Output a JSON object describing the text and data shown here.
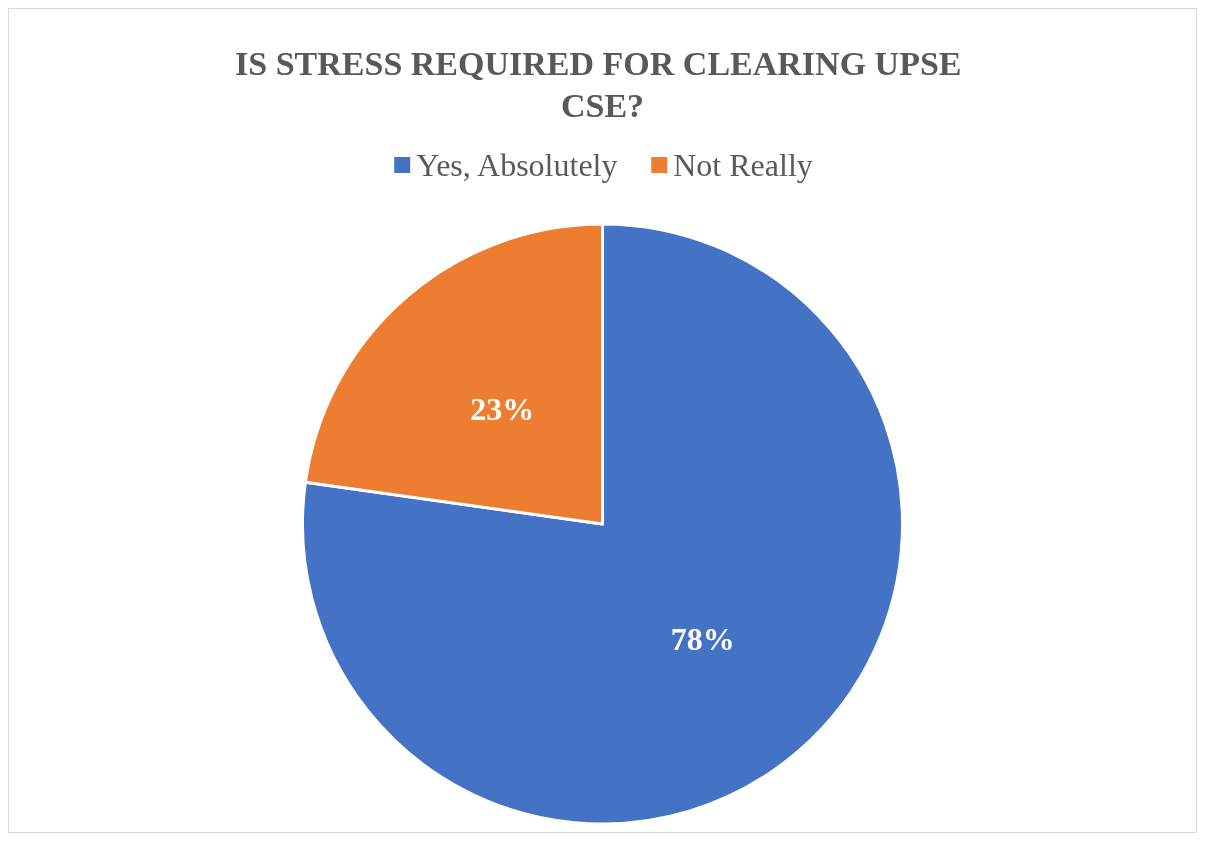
{
  "chart_data": {
    "type": "pie",
    "title": "IS STRESS REQUIRED FOR CLEARING UPSE CSE?",
    "categories": [
      "Yes, Absolutely",
      "Not Really"
    ],
    "values": [
      78,
      23
    ],
    "colors": [
      "#4472c4",
      "#ed7d31"
    ],
    "value_labels": [
      "78%",
      "23%"
    ],
    "legend": "top"
  }
}
